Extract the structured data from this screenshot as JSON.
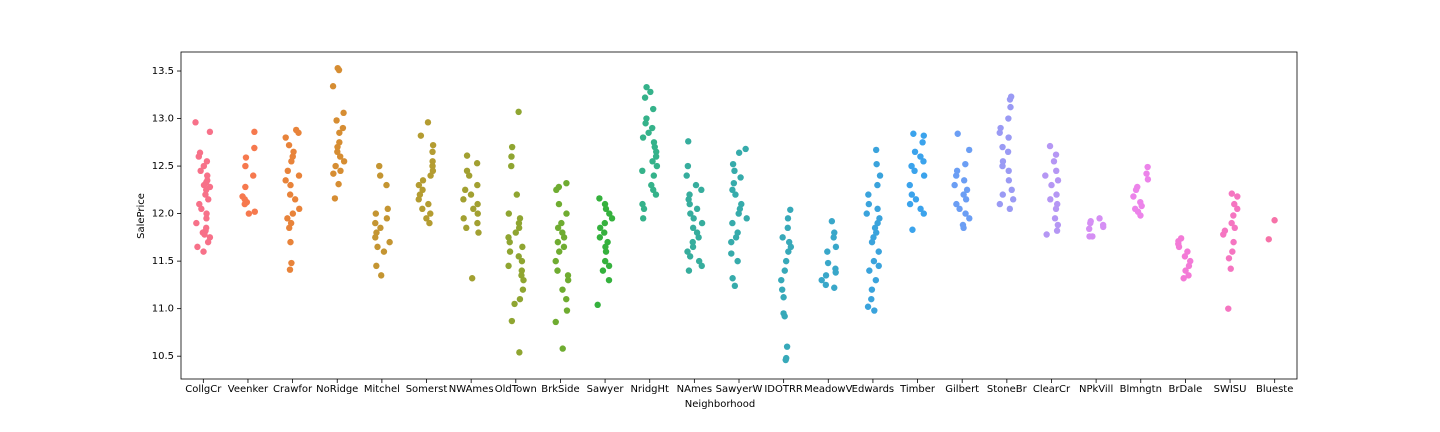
{
  "chart_data": {
    "type": "strip",
    "x_label": "Neighborhood",
    "y_label": "SalePrice",
    "categories": [
      "CollgCr",
      "Veenker",
      "Crawfor",
      "NoRidge",
      "Mitchel",
      "Somerst",
      "NWAmes",
      "OldTown",
      "BrkSide",
      "Sawyer",
      "NridgHt",
      "NAmes",
      "SawyerW",
      "IDOTRR",
      "MeadowV",
      "Edwards",
      "Timber",
      "Gilbert",
      "StoneBr",
      "ClearCr",
      "NPkVill",
      "Blmngtn",
      "BrDale",
      "SWISU",
      "Blueste"
    ],
    "colors": [
      "#f77189",
      "#f6794e",
      "#e8833a",
      "#d68d32",
      "#c49532",
      "#b49c31",
      "#a2a031",
      "#8fa531",
      "#6fac31",
      "#35b13d",
      "#35b28a",
      "#36ad9d",
      "#36abab",
      "#37a9b9",
      "#39a7c9",
      "#3aa3dc",
      "#3ba3ec",
      "#6b9ef4",
      "#9a9af4",
      "#b597f4",
      "#d58ff4",
      "#ec83ea",
      "#f37ad7",
      "#f575c1",
      "#f672a8"
    ],
    "values": [
      [
        12.96,
        12.86,
        12.64,
        12.6,
        12.55,
        12.5,
        12.45,
        12.4,
        12.35,
        12.3,
        12.25,
        12.2,
        12.15,
        12.1,
        12.05,
        12.0,
        11.95,
        11.9,
        11.85,
        11.8,
        11.75,
        11.7,
        11.65,
        11.6,
        12.28,
        12.33,
        11.82,
        11.78
      ],
      [
        12.86,
        12.69,
        12.59,
        12.5,
        12.4,
        12.28,
        12.18,
        12.15,
        12.12,
        12.1,
        12.02,
        12.0
      ],
      [
        12.88,
        12.85,
        12.8,
        12.72,
        12.65,
        12.6,
        12.55,
        12.45,
        12.4,
        12.35,
        12.3,
        12.2,
        12.15,
        12.05,
        12.0,
        11.95,
        11.9,
        11.85,
        11.7,
        11.48,
        11.41
      ],
      [
        13.53,
        13.51,
        13.34,
        13.06,
        12.98,
        12.9,
        12.85,
        12.75,
        12.7,
        12.65,
        12.6,
        12.55,
        12.5,
        12.45,
        12.42,
        12.31,
        12.16
      ],
      [
        12.5,
        12.4,
        12.3,
        12.05,
        12.0,
        11.95,
        11.9,
        11.85,
        11.8,
        11.75,
        11.7,
        11.65,
        11.6,
        11.45,
        11.35
      ],
      [
        12.96,
        12.82,
        12.72,
        12.65,
        12.55,
        12.5,
        12.45,
        12.4,
        12.35,
        12.3,
        12.25,
        12.2,
        12.15,
        12.1,
        12.05,
        12.0,
        11.95,
        11.9
      ],
      [
        12.61,
        12.53,
        12.45,
        12.4,
        12.3,
        12.25,
        12.2,
        12.15,
        12.1,
        12.05,
        12.0,
        11.95,
        11.9,
        11.85,
        11.8,
        11.32
      ],
      [
        13.07,
        12.7,
        12.6,
        12.5,
        12.2,
        12.0,
        11.95,
        11.9,
        11.85,
        11.8,
        11.75,
        11.7,
        11.65,
        11.6,
        11.55,
        11.5,
        11.45,
        11.4,
        11.35,
        11.3,
        11.2,
        11.1,
        11.05,
        10.87,
        10.54
      ],
      [
        12.32,
        12.28,
        12.25,
        12.1,
        12.0,
        11.9,
        11.85,
        11.8,
        11.75,
        11.7,
        11.65,
        11.6,
        11.5,
        11.4,
        11.35,
        11.3,
        11.2,
        11.1,
        10.98,
        10.86,
        10.58
      ],
      [
        12.16,
        12.1,
        12.05,
        12.0,
        11.95,
        11.9,
        11.85,
        11.8,
        11.75,
        11.7,
        11.65,
        11.6,
        11.5,
        11.45,
        11.4,
        11.3,
        11.04
      ],
      [
        13.33,
        13.28,
        13.22,
        13.1,
        13.0,
        12.95,
        12.9,
        12.85,
        12.8,
        12.75,
        12.7,
        12.65,
        12.6,
        12.55,
        12.5,
        12.45,
        12.4,
        12.3,
        12.25,
        12.2,
        12.1,
        12.05,
        11.95
      ],
      [
        12.76,
        12.5,
        12.4,
        12.3,
        12.25,
        12.2,
        12.15,
        12.1,
        12.05,
        12.0,
        11.95,
        11.9,
        11.85,
        11.8,
        11.75,
        11.7,
        11.65,
        11.6,
        11.55,
        11.5,
        11.45,
        11.4
      ],
      [
        12.68,
        12.64,
        12.52,
        12.45,
        12.38,
        12.32,
        12.25,
        12.2,
        12.1,
        12.05,
        12.0,
        11.95,
        11.9,
        11.8,
        11.75,
        11.7,
        11.58,
        11.5,
        11.32,
        11.24
      ],
      [
        12.04,
        11.95,
        11.85,
        11.75,
        11.7,
        11.65,
        11.6,
        11.5,
        11.4,
        11.3,
        11.2,
        11.12,
        10.95,
        10.92,
        10.6,
        10.48,
        10.46
      ],
      [
        11.92,
        11.8,
        11.75,
        11.65,
        11.6,
        11.48,
        11.42,
        11.38,
        11.35,
        11.3,
        11.25,
        11.22
      ],
      [
        12.67,
        12.52,
        12.4,
        12.3,
        12.2,
        12.1,
        12.05,
        12.0,
        11.95,
        11.9,
        11.85,
        11.8,
        11.75,
        11.7,
        11.6,
        11.5,
        11.45,
        11.4,
        11.3,
        11.2,
        11.1,
        11.02,
        10.98
      ],
      [
        12.84,
        12.82,
        12.75,
        12.65,
        12.6,
        12.55,
        12.5,
        12.45,
        12.4,
        12.3,
        12.2,
        12.15,
        12.1,
        12.05,
        12.0,
        11.83
      ],
      [
        12.84,
        12.67,
        12.52,
        12.45,
        12.4,
        12.35,
        12.3,
        12.25,
        12.2,
        12.15,
        12.1,
        12.05,
        12.0,
        11.95,
        11.88,
        11.85
      ],
      [
        13.23,
        13.2,
        13.12,
        13.0,
        12.9,
        12.85,
        12.8,
        12.7,
        12.65,
        12.55,
        12.5,
        12.45,
        12.35,
        12.25,
        12.2,
        12.15,
        12.1,
        12.05
      ],
      [
        12.71,
        12.62,
        12.55,
        12.45,
        12.4,
        12.35,
        12.3,
        12.2,
        12.15,
        12.1,
        12.05,
        11.95,
        11.88,
        11.82,
        11.78
      ],
      [
        11.95,
        11.92,
        11.9,
        11.88,
        11.86,
        11.84,
        11.76,
        11.76
      ],
      [
        12.49,
        12.42,
        12.36,
        12.28,
        12.25,
        12.18,
        12.12,
        12.08,
        12.05,
        12.02,
        11.98
      ],
      [
        11.74,
        11.71,
        11.68,
        11.65,
        11.6,
        11.55,
        11.5,
        11.45,
        11.4,
        11.35,
        11.32
      ],
      [
        12.21,
        12.18,
        12.1,
        12.05,
        11.98,
        11.9,
        11.85,
        11.82,
        11.78,
        11.7,
        11.6,
        11.53,
        11.42,
        11.0
      ],
      [
        11.93,
        11.73
      ]
    ],
    "ylim": [
      10.26,
      13.7
    ],
    "yticks": [
      10.5,
      {
        "value": 11,
        "label": "11.0"
      },
      11.5,
      {
        "value": 12,
        "label": "12.0"
      },
      12.5,
      {
        "value": 13,
        "label": "13.0"
      },
      13.5
    ]
  }
}
